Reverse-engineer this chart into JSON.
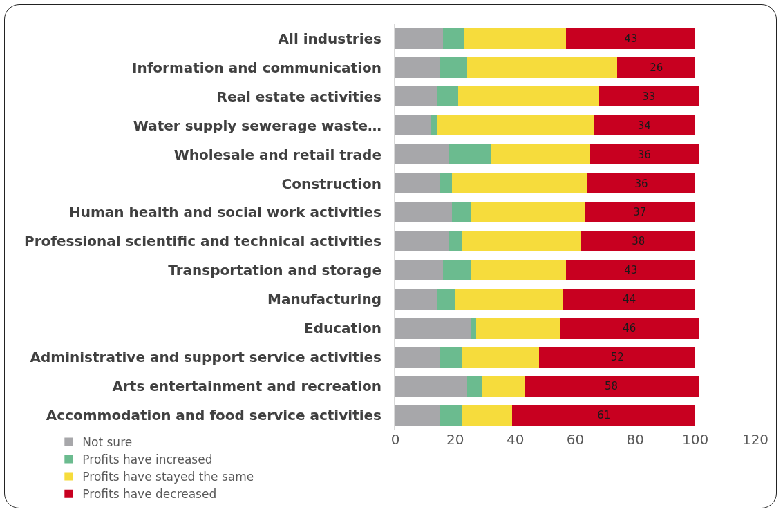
{
  "chart_data": {
    "type": "bar",
    "orientation": "horizontal",
    "stacked": true,
    "categories": [
      "All industries",
      "Information and communication",
      "Real estate activities",
      "Water supply sewerage waste…",
      "Wholesale and retail trade",
      "Construction",
      "Human health and social work activities",
      "Professional scientific and technical activities",
      "Transportation and storage",
      "Manufacturing",
      "Education",
      "Administrative and support service activities",
      "Arts entertainment and recreation",
      "Accommodation and food service activities"
    ],
    "series": [
      {
        "name": "Not sure",
        "color": "#a7a7aa",
        "values": [
          16,
          15,
          14,
          12,
          18,
          15,
          19,
          18,
          16,
          14,
          25,
          15,
          24,
          15
        ]
      },
      {
        "name": "Profits have increased",
        "color": "#6bbb8f",
        "values": [
          7,
          9,
          7,
          2,
          14,
          4,
          6,
          4,
          9,
          6,
          2,
          7,
          5,
          7
        ]
      },
      {
        "name": "Profits have stayed the same",
        "color": "#f6dc3c",
        "values": [
          34,
          50,
          47,
          52,
          33,
          45,
          38,
          40,
          32,
          36,
          28,
          26,
          14,
          17
        ]
      },
      {
        "name": "Profits have decreased",
        "color": "#c80020",
        "values": [
          43,
          26,
          33,
          34,
          36,
          36,
          37,
          38,
          43,
          44,
          46,
          52,
          58,
          61
        ],
        "value_labels": [
          "43",
          "26",
          "33",
          "34",
          "36",
          "36",
          "37",
          "38",
          "43",
          "44",
          "46",
          "52",
          "58",
          "61"
        ]
      }
    ],
    "xlim": [
      0,
      120
    ],
    "xticks": [
      0,
      20,
      40,
      60,
      80,
      100,
      120
    ],
    "grid": false,
    "legend": "bottom"
  }
}
